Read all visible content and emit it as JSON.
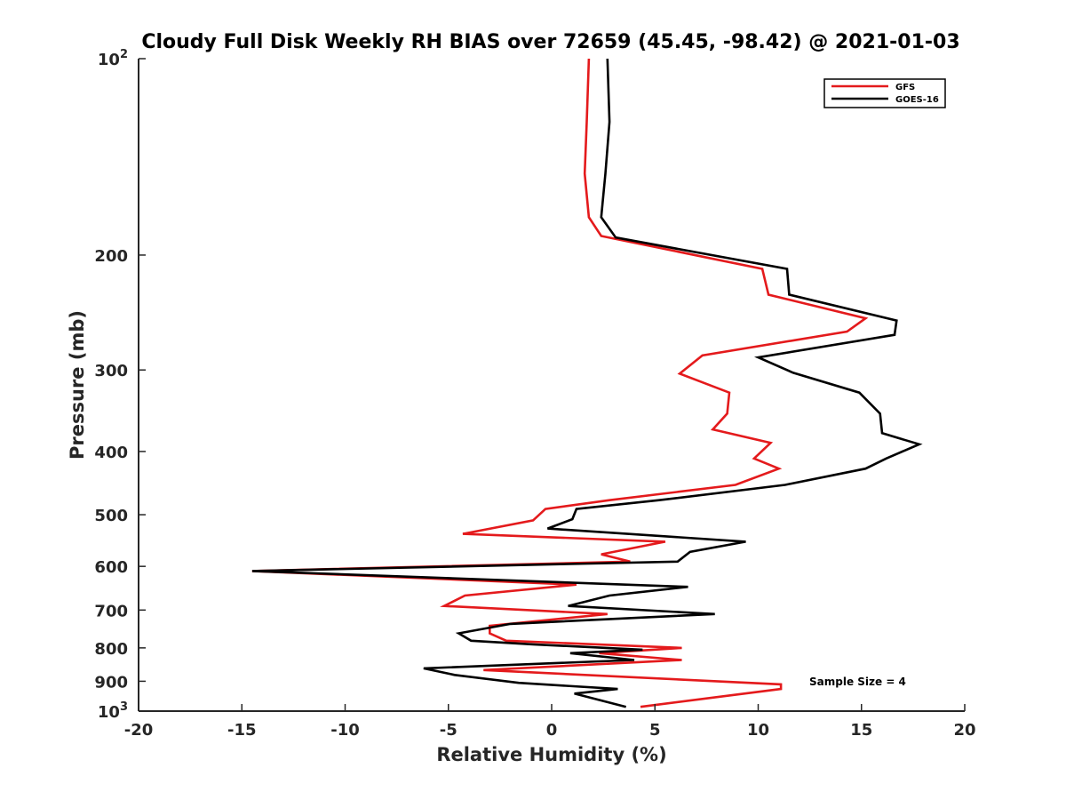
{
  "chart_data": {
    "type": "line",
    "title": "Cloudy Full Disk Weekly RH BIAS over 72659 (45.45, -98.42) @ 2021-01-03",
    "xlabel": "Relative Humidity (%)",
    "ylabel": "Pressure (mb)",
    "xlim": [
      -20,
      20
    ],
    "ylim": [
      100,
      1000
    ],
    "y_scale": "log",
    "y_reversed": true,
    "x_ticks": [
      "-20",
      "-15",
      "-10",
      "-5",
      "0",
      "5",
      "10",
      "15",
      "20"
    ],
    "y_ticks": [
      {
        "value": 100,
        "base": "10",
        "exp": "2"
      },
      {
        "value": 200,
        "label": "200"
      },
      {
        "value": 300,
        "label": "300"
      },
      {
        "value": 400,
        "label": "400"
      },
      {
        "value": 500,
        "label": "500"
      },
      {
        "value": 600,
        "label": "600"
      },
      {
        "value": 700,
        "label": "700"
      },
      {
        "value": 800,
        "label": "800"
      },
      {
        "value": 900,
        "label": "900"
      },
      {
        "value": 1000,
        "base": "10",
        "exp": "3"
      }
    ],
    "legend_position": "top-right",
    "annotation": "Sample Size = 4",
    "series": [
      {
        "name": "GFS",
        "color": "#e41a1c",
        "points": [
          [
            1.8,
            100
          ],
          [
            1.7,
            125
          ],
          [
            1.6,
            150
          ],
          [
            1.8,
            175
          ],
          [
            2.4,
            187
          ],
          [
            10.2,
            210
          ],
          [
            10.5,
            230
          ],
          [
            15.2,
            250
          ],
          [
            14.3,
            262
          ],
          [
            7.3,
            285
          ],
          [
            6.2,
            304
          ],
          [
            8.6,
            325
          ],
          [
            8.5,
            350
          ],
          [
            7.8,
            370
          ],
          [
            10.6,
            388
          ],
          [
            9.8,
            410
          ],
          [
            11.0,
            425
          ],
          [
            8.9,
            450
          ],
          [
            2.8,
            475
          ],
          [
            -0.3,
            490
          ],
          [
            -0.9,
            510
          ],
          [
            -4.3,
            535
          ],
          [
            5.5,
            550
          ],
          [
            2.4,
            575
          ],
          [
            3.8,
            590
          ],
          [
            -14.5,
            610
          ],
          [
            1.2,
            640
          ],
          [
            -4.2,
            665
          ],
          [
            -5.2,
            690
          ],
          [
            2.7,
            710
          ],
          [
            -3.0,
            740
          ],
          [
            -3.0,
            760
          ],
          [
            -2.2,
            780
          ],
          [
            6.3,
            800
          ],
          [
            2.3,
            815
          ],
          [
            6.3,
            835
          ],
          [
            -3.3,
            865
          ],
          [
            11.1,
            910
          ],
          [
            11.1,
            925
          ],
          [
            4.3,
            985
          ]
        ]
      },
      {
        "name": "GOES-16",
        "color": "#000000",
        "points": [
          [
            2.7,
            100
          ],
          [
            2.8,
            125
          ],
          [
            2.6,
            150
          ],
          [
            2.4,
            175
          ],
          [
            3.1,
            188
          ],
          [
            11.4,
            210
          ],
          [
            11.5,
            230
          ],
          [
            16.7,
            252
          ],
          [
            16.6,
            265
          ],
          [
            10.0,
            287
          ],
          [
            11.7,
            303
          ],
          [
            14.9,
            325
          ],
          [
            15.9,
            350
          ],
          [
            16.0,
            375
          ],
          [
            17.8,
            390
          ],
          [
            16.2,
            410
          ],
          [
            15.2,
            425
          ],
          [
            11.3,
            450
          ],
          [
            5.2,
            475
          ],
          [
            1.2,
            490
          ],
          [
            1.0,
            508
          ],
          [
            -0.2,
            525
          ],
          [
            9.4,
            550
          ],
          [
            6.7,
            570
          ],
          [
            6.1,
            590
          ],
          [
            -14.5,
            610
          ],
          [
            6.6,
            645
          ],
          [
            2.8,
            665
          ],
          [
            0.8,
            690
          ],
          [
            7.9,
            710
          ],
          [
            -2.0,
            735
          ],
          [
            -4.5,
            760
          ],
          [
            -3.9,
            780
          ],
          [
            -0.9,
            790
          ],
          [
            4.4,
            805
          ],
          [
            0.9,
            815
          ],
          [
            4.0,
            835
          ],
          [
            -6.2,
            860
          ],
          [
            -4.7,
            880
          ],
          [
            -1.6,
            905
          ],
          [
            3.2,
            925
          ],
          [
            1.1,
            940
          ],
          [
            3.6,
            985
          ]
        ]
      }
    ]
  }
}
